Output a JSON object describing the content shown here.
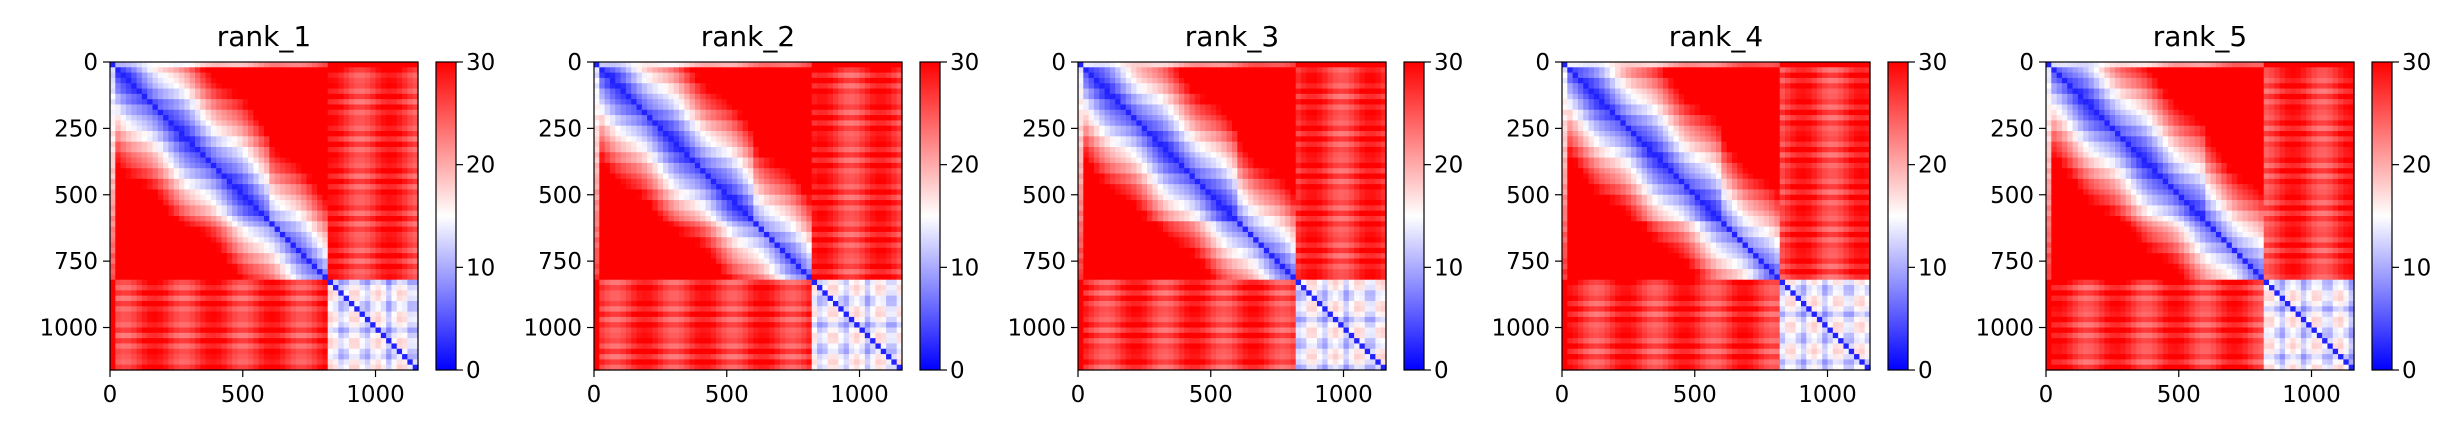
{
  "chart_data": [
    {
      "type": "heatmap",
      "title": "rank_1",
      "xlim": [
        0,
        1160
      ],
      "ylim": [
        1160,
        0
      ],
      "x_ticks": [
        0,
        500,
        1000
      ],
      "y_ticks": [
        0,
        250,
        500,
        750,
        1000
      ],
      "colorbar": {
        "range": [
          0,
          30
        ],
        "ticks": [
          0,
          10,
          20,
          30
        ],
        "colormap": "bwr",
        "low_color": "#0000ff",
        "mid_color": "#ffffff",
        "high_color": "#ff0000"
      },
      "block_boundaries": [
        0,
        30,
        820,
        1160
      ]
    },
    {
      "type": "heatmap",
      "title": "rank_2",
      "xlim": [
        0,
        1160
      ],
      "ylim": [
        1160,
        0
      ],
      "x_ticks": [
        0,
        500,
        1000
      ],
      "y_ticks": [
        0,
        250,
        500,
        750,
        1000
      ],
      "colorbar": {
        "range": [
          0,
          30
        ],
        "ticks": [
          0,
          10,
          20,
          30
        ],
        "colormap": "bwr",
        "low_color": "#0000ff",
        "mid_color": "#ffffff",
        "high_color": "#ff0000"
      },
      "block_boundaries": [
        0,
        30,
        820,
        1160
      ]
    },
    {
      "type": "heatmap",
      "title": "rank_3",
      "xlim": [
        0,
        1160
      ],
      "ylim": [
        1160,
        0
      ],
      "x_ticks": [
        0,
        500,
        1000
      ],
      "y_ticks": [
        0,
        250,
        500,
        750,
        1000
      ],
      "colorbar": {
        "range": [
          0,
          30
        ],
        "ticks": [
          0,
          10,
          20,
          30
        ],
        "colormap": "bwr",
        "low_color": "#0000ff",
        "mid_color": "#ffffff",
        "high_color": "#ff0000"
      },
      "block_boundaries": [
        0,
        30,
        820,
        1160
      ]
    },
    {
      "type": "heatmap",
      "title": "rank_4",
      "xlim": [
        0,
        1160
      ],
      "ylim": [
        1160,
        0
      ],
      "x_ticks": [
        0,
        500,
        1000
      ],
      "y_ticks": [
        0,
        250,
        500,
        750,
        1000
      ],
      "colorbar": {
        "range": [
          0,
          30
        ],
        "ticks": [
          0,
          10,
          20,
          30
        ],
        "colormap": "bwr",
        "low_color": "#0000ff",
        "mid_color": "#ffffff",
        "high_color": "#ff0000"
      },
      "block_boundaries": [
        0,
        30,
        820,
        1160
      ]
    },
    {
      "type": "heatmap",
      "title": "rank_5",
      "xlim": [
        0,
        1160
      ],
      "ylim": [
        1160,
        0
      ],
      "x_ticks": [
        0,
        500,
        1000
      ],
      "y_ticks": [
        0,
        250,
        500,
        750,
        1000
      ],
      "colorbar": {
        "range": [
          0,
          30
        ],
        "ticks": [
          0,
          10,
          20,
          30
        ],
        "colormap": "bwr",
        "low_color": "#0000ff",
        "mid_color": "#ffffff",
        "high_color": "#ff0000"
      },
      "block_boundaries": [
        0,
        30,
        820,
        1160
      ]
    }
  ]
}
